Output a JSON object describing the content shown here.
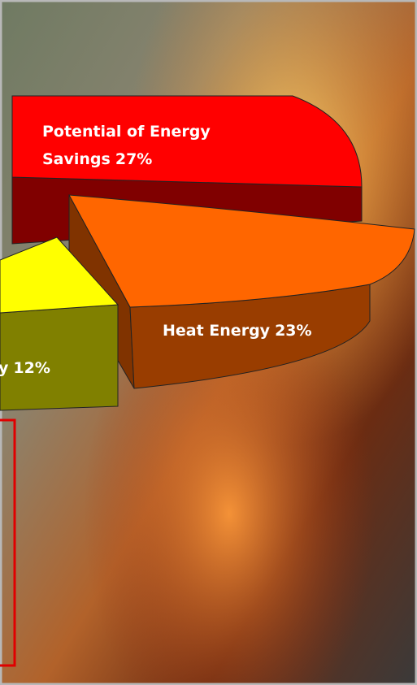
{
  "chart_data": {
    "type": "pie3d",
    "categories": [
      "Potential of Energy Savings",
      "Heat Energy",
      "y"
    ],
    "values": [
      27,
      23,
      12
    ],
    "value_labels": [
      "27%",
      "23%",
      "12%"
    ],
    "colors": [
      "#ff0000",
      "#ff6600",
      "#ffff00"
    ]
  }
}
